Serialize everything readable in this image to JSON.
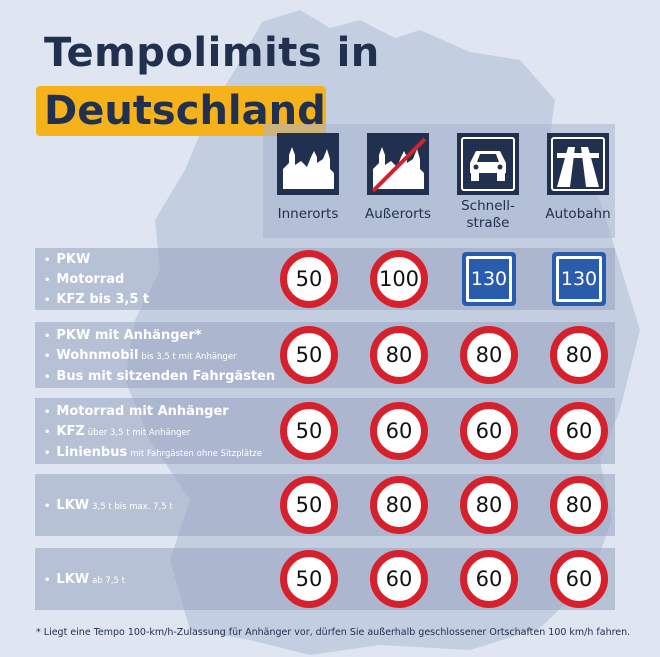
{
  "title": {
    "line1": "Tempolimits in",
    "line2": "Deutschland"
  },
  "columns": [
    {
      "label": "Innerorts",
      "icon": "town-icon"
    },
    {
      "label": "Außerorts",
      "icon": "town-crossed-icon"
    },
    {
      "label": "Schnell-\nstraße",
      "icon": "car-icon"
    },
    {
      "label": "Autobahn",
      "icon": "motorway-icon"
    }
  ],
  "rows": [
    {
      "vehicles": [
        {
          "name": "PKW",
          "note": ""
        },
        {
          "name": "Motorrad",
          "note": ""
        },
        {
          "name": "KFZ bis 3,5 t",
          "note": ""
        }
      ],
      "limits": [
        "50",
        "100",
        "130",
        "130"
      ],
      "sign_type": [
        "round",
        "round",
        "blue",
        "blue"
      ]
    },
    {
      "vehicles": [
        {
          "name": "PKW mit Anhänger*",
          "note": ""
        },
        {
          "name": "Wohnmobil",
          "note": "bis 3,5 t mit Anhänger"
        },
        {
          "name": "Bus mit sitzenden Fahrgästen",
          "note": ""
        }
      ],
      "limits": [
        "50",
        "80",
        "80",
        "80"
      ],
      "sign_type": [
        "round",
        "round",
        "round",
        "round"
      ]
    },
    {
      "vehicles": [
        {
          "name": "Motorrad mit Anhänger",
          "note": ""
        },
        {
          "name": "KFZ",
          "note": "über 3,5 t mit Anhänger"
        },
        {
          "name": "Linienbus",
          "note": "mit Fahrgästen ohne Sitzplätze"
        }
      ],
      "limits": [
        "50",
        "60",
        "60",
        "60"
      ],
      "sign_type": [
        "round",
        "round",
        "round",
        "round"
      ]
    },
    {
      "vehicles": [
        {
          "name": "LKW",
          "note": "3,5 t bis max. 7,5 t"
        }
      ],
      "limits": [
        "50",
        "80",
        "80",
        "80"
      ],
      "sign_type": [
        "round",
        "round",
        "round",
        "round"
      ]
    },
    {
      "vehicles": [
        {
          "name": "LKW",
          "note": "ab 7,5 t"
        }
      ],
      "limits": [
        "50",
        "60",
        "60",
        "60"
      ],
      "sign_type": [
        "round",
        "round",
        "round",
        "round"
      ]
    }
  ],
  "footnote": "* Liegt eine Tempo 100-km/h-Zulassung für Anhänger vor, dürfen Sie außerhalb geschlossener Ortschaften 100 km/h fahren.",
  "colors": {
    "navy": "#22304f",
    "accent": "#f5b21a",
    "sign_red": "#d6212d",
    "sign_blue": "#2a5cae",
    "background": "#dfe6f1"
  }
}
